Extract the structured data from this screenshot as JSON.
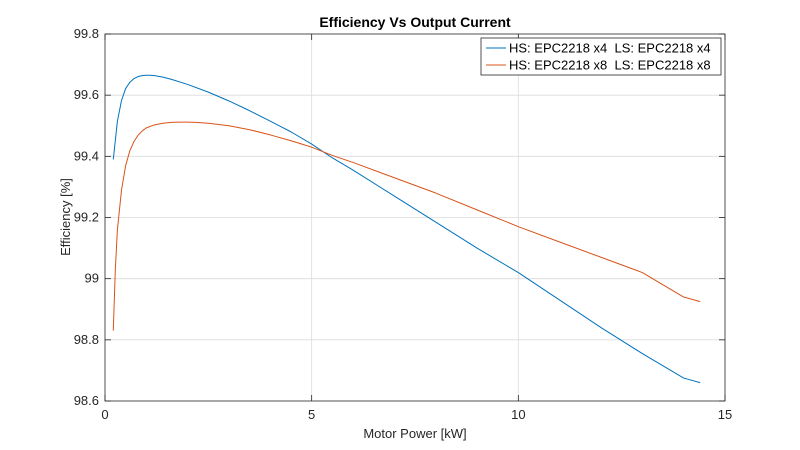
{
  "chart_data": {
    "type": "line",
    "title": "Efficiency Vs Output Current",
    "xlabel": "Motor Power [kW]",
    "ylabel": "Efficiency [%]",
    "xlim": [
      0,
      15
    ],
    "ylim": [
      98.6,
      99.8
    ],
    "xticks": [
      0,
      5,
      10,
      15
    ],
    "xtick_labels": [
      "0",
      "5",
      "10",
      "15"
    ],
    "yticks": [
      98.6,
      98.8,
      99.0,
      99.2,
      99.4,
      99.6,
      99.8
    ],
    "ytick_labels": [
      "98.6",
      "98.8",
      "99",
      "99.2",
      "99.4",
      "99.6",
      "99.8"
    ],
    "grid": true,
    "legend_position": "top-right",
    "series": [
      {
        "name": "HS: EPC2218 x4  LS: EPC2218 x4",
        "color": "#0072BD",
        "x": [
          0.2,
          0.3,
          0.4,
          0.5,
          0.6,
          0.7,
          0.8,
          0.9,
          1.0,
          1.1,
          1.2,
          1.4,
          1.6,
          2.0,
          2.5,
          3.0,
          3.5,
          4.0,
          4.5,
          5.0,
          5.5,
          6.0,
          7.0,
          8.0,
          9.0,
          10.0,
          11.0,
          12.0,
          13.0,
          14.0,
          14.4
        ],
        "y": [
          99.39,
          99.515,
          99.583,
          99.622,
          99.642,
          99.654,
          99.661,
          99.664,
          99.665,
          99.665,
          99.664,
          99.659,
          99.652,
          99.635,
          99.61,
          99.581,
          99.549,
          99.515,
          99.48,
          99.44,
          99.395,
          99.355,
          99.27,
          99.185,
          99.1,
          99.02,
          98.93,
          98.84,
          98.755,
          98.675,
          98.66
        ]
      },
      {
        "name": "HS: EPC2218 x8  LS: EPC2218 x8",
        "color": "#D95319",
        "x": [
          0.2,
          0.25,
          0.3,
          0.4,
          0.5,
          0.6,
          0.7,
          0.8,
          0.9,
          1.0,
          1.2,
          1.4,
          1.6,
          1.8,
          2.0,
          2.2,
          2.5,
          3.0,
          3.5,
          4.0,
          4.5,
          5.0,
          5.5,
          6.0,
          7.0,
          8.0,
          9.0,
          10.0,
          11.0,
          12.0,
          13.0,
          14.0,
          14.4
        ],
        "y": [
          98.83,
          99.03,
          99.16,
          99.29,
          99.37,
          99.418,
          99.448,
          99.469,
          99.483,
          99.493,
          99.503,
          99.508,
          99.511,
          99.512,
          99.512,
          99.511,
          99.508,
          99.5,
          99.487,
          99.47,
          99.451,
          99.43,
          99.403,
          99.38,
          99.33,
          99.28,
          99.225,
          99.17,
          99.12,
          99.07,
          99.02,
          98.94,
          98.925
        ]
      }
    ]
  }
}
